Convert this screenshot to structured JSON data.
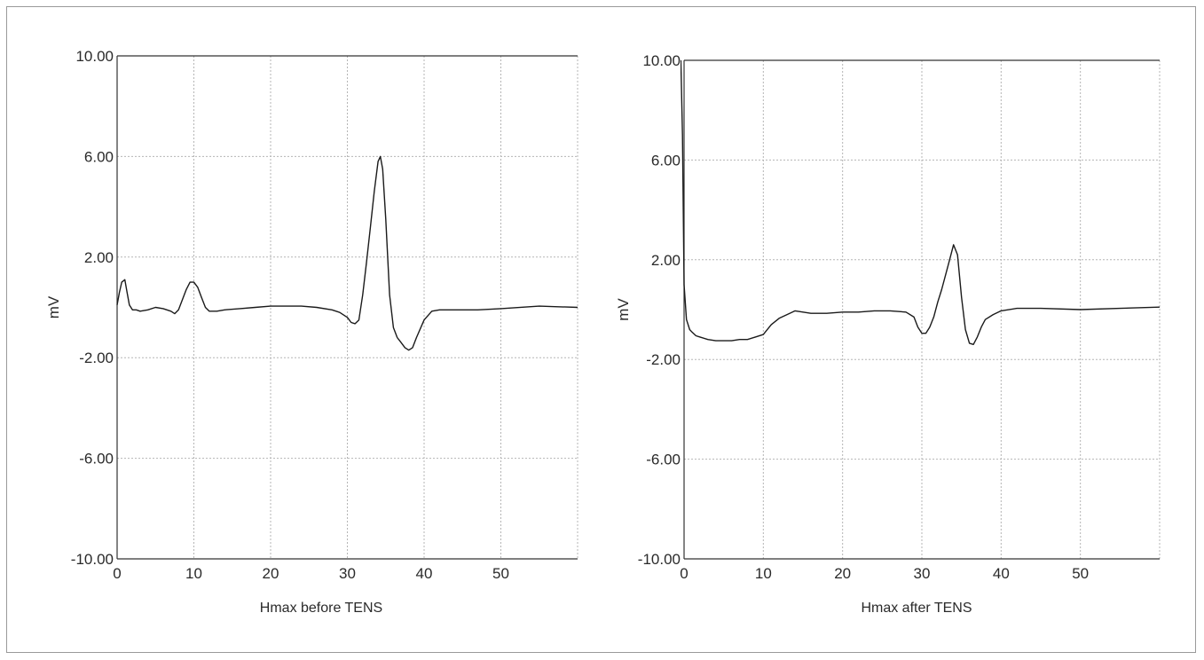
{
  "chart_data": [
    {
      "type": "line",
      "title": "",
      "xlabel": "Hmax before TENS",
      "ylabel": "mV",
      "xlim": [
        0,
        60
      ],
      "ylim": [
        -10,
        10
      ],
      "x_ticks": [
        0,
        10,
        20,
        30,
        40,
        50
      ],
      "y_ticks": [
        10,
        6,
        2,
        -2,
        -6,
        -10
      ],
      "y_tick_labels": [
        "10.00",
        "6.00",
        "2.00",
        "-2.00",
        "-6.00",
        "-10.00"
      ],
      "grid": true,
      "line_color": "#1a1a1a",
      "series": [
        {
          "x": [
            0,
            0.3,
            0.6,
            1.0,
            1.3,
            1.6,
            2.0,
            2.5,
            3.0,
            4.0,
            5.0,
            6.0,
            7.0,
            7.5,
            8.0,
            8.5,
            9.0,
            9.5,
            10.0,
            10.5,
            11.0,
            11.5,
            12.0,
            13.0,
            14.0,
            16.0,
            18.0,
            20.0,
            22.0,
            24.0,
            26.0,
            28.0,
            29.0,
            30.0,
            30.5,
            31.0,
            31.5,
            32.0,
            32.5,
            33.0,
            33.5,
            34.0,
            34.3,
            34.6,
            35.0,
            35.5,
            36.0,
            36.5,
            37.0,
            37.5,
            38.0,
            38.5,
            39.0,
            40.0,
            41.0,
            42.0,
            43.0,
            45.0,
            47.0,
            50.0,
            55.0,
            60.0
          ],
          "y": [
            0.1,
            0.6,
            1.0,
            1.1,
            0.6,
            0.1,
            -0.1,
            -0.1,
            -0.15,
            -0.1,
            0.0,
            -0.05,
            -0.15,
            -0.25,
            -0.1,
            0.3,
            0.7,
            1.0,
            1.0,
            0.8,
            0.4,
            0.0,
            -0.15,
            -0.15,
            -0.1,
            -0.05,
            0.0,
            0.05,
            0.05,
            0.05,
            0.0,
            -0.1,
            -0.2,
            -0.4,
            -0.6,
            -0.65,
            -0.5,
            0.5,
            1.8,
            3.2,
            4.6,
            5.8,
            6.0,
            5.5,
            3.5,
            0.5,
            -0.8,
            -1.2,
            -1.4,
            -1.6,
            -1.7,
            -1.6,
            -1.2,
            -0.5,
            -0.15,
            -0.1,
            -0.1,
            -0.1,
            -0.1,
            -0.05,
            0.05,
            0.0
          ]
        }
      ]
    },
    {
      "type": "line",
      "title": "",
      "xlabel": "Hmax after TENS",
      "ylabel": "mV",
      "xlim": [
        0,
        60
      ],
      "ylim": [
        -10,
        10
      ],
      "x_ticks": [
        0,
        10,
        20,
        30,
        40,
        50
      ],
      "y_ticks": [
        10,
        6,
        2,
        -2,
        -6,
        -10
      ],
      "y_tick_labels": [
        "10.00",
        "6.00",
        "2.00",
        "-2.00",
        "-6.00",
        "-10.00"
      ],
      "grid": true,
      "line_color": "#1a1a1a",
      "series": [
        {
          "x": [
            -0.9,
            -0.8,
            -0.6,
            -0.4,
            -0.2,
            0.0,
            0.3,
            0.7,
            1.0,
            1.5,
            2.0,
            3.0,
            4.0,
            5.0,
            6.0,
            7.0,
            8.0,
            9.0,
            10.0,
            11.0,
            12.0,
            13.0,
            14.0,
            15.0,
            16.0,
            18.0,
            20.0,
            22.0,
            24.0,
            26.0,
            28.0,
            29.0,
            29.5,
            30.0,
            30.5,
            31.0,
            31.5,
            32.0,
            32.5,
            33.0,
            33.5,
            34.0,
            34.5,
            35.0,
            35.5,
            36.0,
            36.5,
            37.0,
            37.5,
            38.0,
            39.0,
            40.0,
            42.0,
            45.0,
            50.0,
            55.0,
            60.0
          ],
          "y": [
            7.0,
            9.5,
            10.0,
            10.0,
            7.0,
            1.0,
            -0.4,
            -0.8,
            -0.9,
            -1.05,
            -1.1,
            -1.2,
            -1.25,
            -1.25,
            -1.25,
            -1.2,
            -1.2,
            -1.1,
            -1.0,
            -0.6,
            -0.35,
            -0.2,
            -0.05,
            -0.1,
            -0.15,
            -0.15,
            -0.1,
            -0.1,
            -0.05,
            -0.05,
            -0.1,
            -0.3,
            -0.7,
            -0.95,
            -0.95,
            -0.7,
            -0.3,
            0.3,
            0.8,
            1.4,
            2.0,
            2.6,
            2.2,
            0.5,
            -0.8,
            -1.35,
            -1.4,
            -1.1,
            -0.7,
            -0.4,
            -0.2,
            -0.05,
            0.05,
            0.05,
            0.0,
            0.05,
            0.1
          ]
        }
      ]
    }
  ]
}
